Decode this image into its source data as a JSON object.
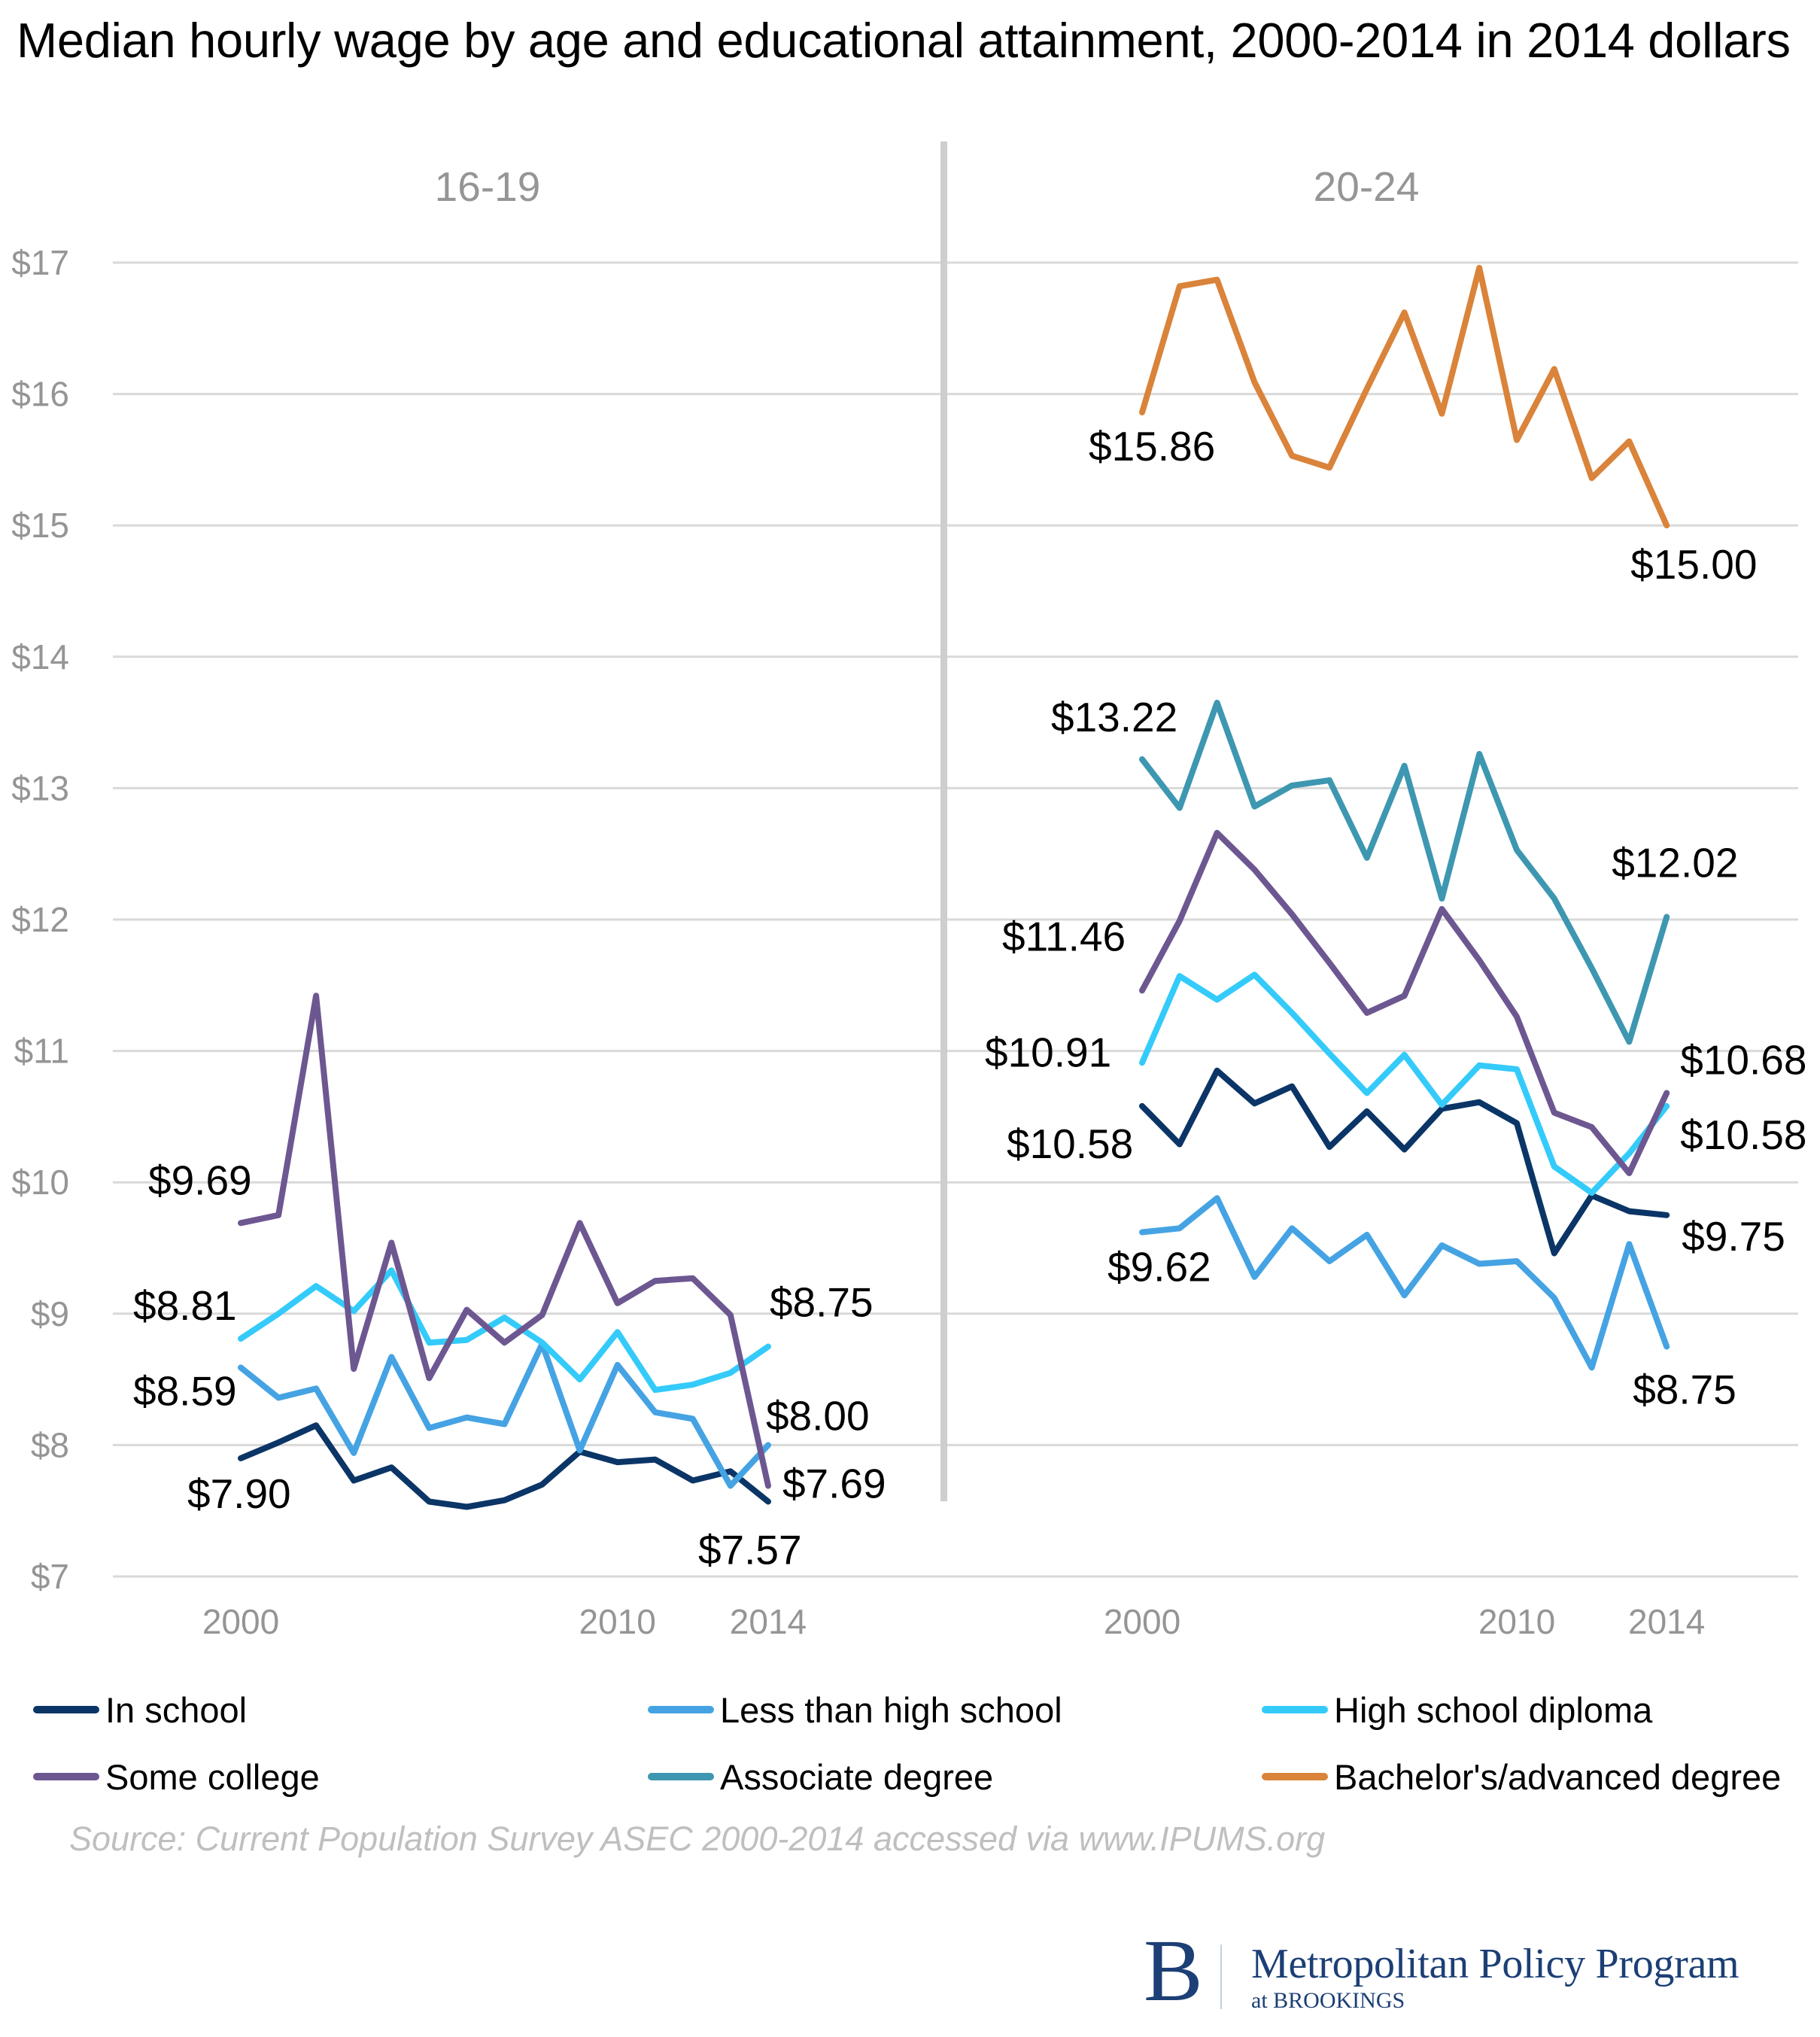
{
  "title": "Median hourly wage by age and educational attainment, 2000-2014 in 2014 dollars",
  "source": "Source: Current Population Survey ASEC 2000-2014 accessed via www.IPUMS.org",
  "logo": {
    "mark": "B",
    "name": "Metropolitan Policy Program",
    "sub": "at BROOKINGS"
  },
  "chart_data": {
    "type": "line",
    "title": "Median hourly wage by age and educational attainment, 2000-2014 in 2014 dollars",
    "xlabel": "",
    "ylabel": "",
    "ylim": [
      7,
      17
    ],
    "yticks": [
      "$7",
      "$8",
      "$9",
      "$10",
      "$11",
      "$12",
      "$13",
      "$14",
      "$15",
      "$16",
      "$17"
    ],
    "ytick_values": [
      7,
      8,
      9,
      10,
      11,
      12,
      13,
      14,
      15,
      16,
      17
    ],
    "xlim": [
      2000,
      2014
    ],
    "xticks": [
      2000,
      2010,
      2014
    ],
    "xtick_labels": [
      "2000",
      "2010",
      "2014"
    ],
    "grid": true,
    "legend_position": "bottom",
    "x": [
      2000,
      2001,
      2002,
      2003,
      2004,
      2005,
      2006,
      2007,
      2008,
      2009,
      2010,
      2011,
      2012,
      2013,
      2014
    ],
    "legend": [
      {
        "key": "in_school",
        "name": "In school",
        "color": "#0b3566"
      },
      {
        "key": "less_hs",
        "name": "Less than high school",
        "color": "#45a3e3"
      },
      {
        "key": "hs",
        "name": "High school diploma",
        "color": "#34cbfa"
      },
      {
        "key": "some_college",
        "name": "Some college",
        "color": "#6d5791"
      },
      {
        "key": "associate",
        "name": "Associate degree",
        "color": "#3e97b0"
      },
      {
        "key": "bachelor",
        "name": "Bachelor's/advanced degree",
        "color": "#da833a"
      }
    ],
    "panels": [
      {
        "label": "16-19",
        "series": [
          {
            "key": "in_school",
            "name": "In school",
            "values": [
              7.9,
              8.02,
              8.15,
              7.73,
              7.83,
              7.57,
              7.53,
              7.58,
              7.7,
              7.95,
              7.87,
              7.89,
              7.73,
              7.8,
              7.57
            ]
          },
          {
            "key": "less_hs",
            "name": "Less than high school",
            "values": [
              8.59,
              8.36,
              8.43,
              7.94,
              8.67,
              8.13,
              8.21,
              8.16,
              8.77,
              7.96,
              8.61,
              8.25,
              8.2,
              7.69,
              8.0
            ]
          },
          {
            "key": "hs",
            "name": "High school diploma",
            "values": [
              8.81,
              9.0,
              9.21,
              9.02,
              9.33,
              8.78,
              8.8,
              8.97,
              8.78,
              8.5,
              8.86,
              8.42,
              8.46,
              8.55,
              8.75
            ]
          },
          {
            "key": "some_college",
            "name": "Some college",
            "values": [
              9.69,
              9.75,
              11.42,
              8.58,
              9.54,
              8.51,
              9.03,
              8.78,
              8.99,
              9.69,
              9.08,
              9.25,
              9.27,
              8.99,
              7.69
            ]
          }
        ],
        "data_labels": [
          {
            "series": "some_college",
            "year": 2000,
            "text": "$9.69"
          },
          {
            "series": "hs",
            "year": 2000,
            "text": "$8.81"
          },
          {
            "series": "less_hs",
            "year": 2000,
            "text": "$8.59"
          },
          {
            "series": "in_school",
            "year": 2000,
            "text": "$7.90"
          },
          {
            "series": "hs",
            "year": 2014,
            "text": "$8.75"
          },
          {
            "series": "less_hs",
            "year": 2014,
            "text": "$8.00"
          },
          {
            "series": "some_college",
            "year": 2014,
            "text": "$7.69"
          },
          {
            "series": "in_school",
            "year": 2014,
            "text": "$7.57"
          }
        ]
      },
      {
        "label": "20-24",
        "series": [
          {
            "key": "in_school",
            "name": "In school",
            "values": [
              10.58,
              10.29,
              10.85,
              10.6,
              10.73,
              10.27,
              10.54,
              10.25,
              10.56,
              10.61,
              10.45,
              9.46,
              9.9,
              9.78,
              9.75
            ]
          },
          {
            "key": "less_hs",
            "name": "Less than high school",
            "values": [
              9.62,
              9.65,
              9.88,
              9.28,
              9.65,
              9.4,
              9.6,
              9.14,
              9.52,
              9.38,
              9.4,
              9.12,
              8.59,
              9.53,
              8.75
            ]
          },
          {
            "key": "hs",
            "name": "High school diploma",
            "values": [
              10.91,
              11.57,
              11.39,
              11.58,
              11.29,
              10.98,
              10.68,
              10.97,
              10.59,
              10.89,
              10.86,
              10.12,
              9.92,
              10.22,
              10.58
            ]
          },
          {
            "key": "some_college",
            "name": "Some college",
            "values": [
              11.46,
              11.99,
              12.66,
              12.38,
              12.04,
              11.67,
              11.29,
              11.42,
              12.08,
              11.69,
              11.26,
              10.53,
              10.42,
              10.07,
              10.68
            ]
          },
          {
            "key": "associate",
            "name": "Associate degree",
            "values": [
              13.22,
              12.85,
              13.65,
              12.86,
              13.02,
              13.06,
              12.47,
              13.17,
              12.16,
              13.26,
              12.53,
              12.16,
              11.63,
              11.07,
              12.02
            ]
          },
          {
            "key": "bachelor",
            "name": "Bachelor's/advanced degree",
            "values": [
              15.86,
              16.82,
              16.87,
              16.09,
              15.53,
              15.44,
              16.04,
              16.62,
              15.85,
              16.96,
              15.65,
              16.19,
              15.36,
              15.64,
              15.0
            ]
          }
        ],
        "data_labels": [
          {
            "series": "bachelor",
            "year": 2000,
            "text": "$15.86"
          },
          {
            "series": "bachelor",
            "year": 2014,
            "text": "$15.00"
          },
          {
            "series": "associate",
            "year": 2000,
            "text": "$13.22"
          },
          {
            "series": "associate",
            "year": 2014,
            "text": "$12.02"
          },
          {
            "series": "some_college",
            "year": 2000,
            "text": "$11.46"
          },
          {
            "series": "hs",
            "year": 2000,
            "text": "$10.91"
          },
          {
            "series": "in_school",
            "year": 2000,
            "text": "$10.58"
          },
          {
            "series": "less_hs",
            "year": 2000,
            "text": "$9.62"
          },
          {
            "series": "some_college",
            "year": 2014,
            "text": "$10.68"
          },
          {
            "series": "hs",
            "year": 2014,
            "text": "$10.58"
          },
          {
            "series": "in_school",
            "year": 2014,
            "text": "$9.75"
          },
          {
            "series": "less_hs",
            "year": 2014,
            "text": "$8.75"
          }
        ]
      }
    ]
  }
}
